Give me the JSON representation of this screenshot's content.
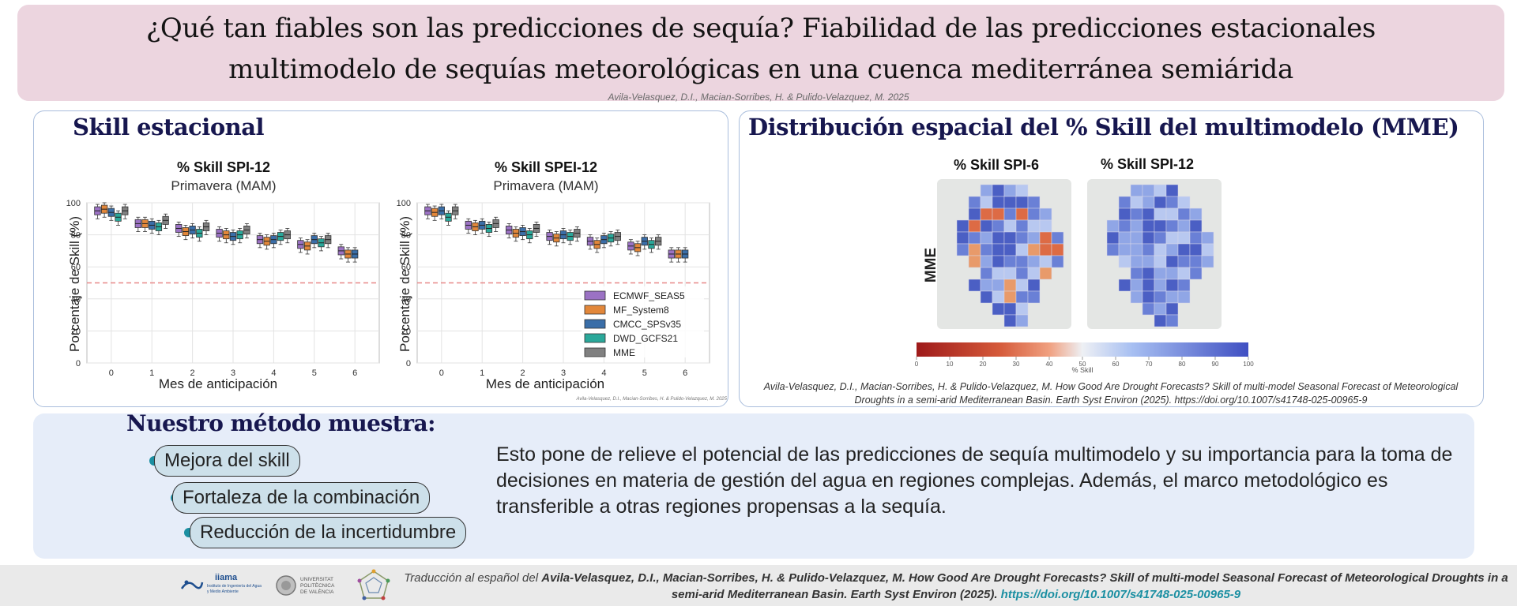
{
  "title": {
    "line1": "¿Qué tan fiables son las predicciones de sequía? Fiabilidad  de las predicciones estacionales",
    "line2": "multimodelo de sequías meteorológicas en una cuenca mediterránea semiárida",
    "authors": "Avila-Velasquez, D.I., Macian-Sorribes, H. & Pulido-Velazquez, M. 2025"
  },
  "left_panel": {
    "title": "Skill estacional",
    "credit": "Avila-Velasquez, D.I., Macian-Sorribes, H. & Pulido-Velazquez, M. 2025"
  },
  "right_panel": {
    "title": "Distribución espacial  del % Skill del multimodelo (MME)",
    "map1_title": "% Skill SPI-6",
    "map2_title": "% Skill SPI-12",
    "row_label": "MME",
    "colorbar_label": "% Skill",
    "colorbar_ticks": [
      "0",
      "10",
      "20",
      "30",
      "40",
      "50",
      "60",
      "70",
      "80",
      "90",
      "100"
    ],
    "citation": "Avila-Velasquez, D.I., Macian-Sorribes, H. & Pulido-Velazquez, M. How Good Are Drought Forecasts? Skill of multi-model Seasonal Forecast of Meteorological Droughts in a semi-arid Mediterranean Basin. Earth Syst Environ (2025). https://doi.org/10.1007/s41748-025-00965-9"
  },
  "chart_data": [
    {
      "type": "box",
      "title": "% Skill SPI-12",
      "subtitle": "Primavera (MAM)",
      "xlabel": "Mes de anticipación",
      "ylabel": "Porcentaje de Skill (%)",
      "ylim": [
        0,
        100
      ],
      "yticks": [
        "0",
        "20",
        "40",
        "60",
        "80",
        "100"
      ],
      "categories": [
        "0",
        "1",
        "2",
        "3",
        "4",
        "5",
        "6"
      ],
      "reference_line": 50,
      "series": [
        {
          "name": "ECMWF_SEAS5",
          "color": "#9b72c4",
          "medians": [
            95,
            87,
            84,
            81,
            77,
            74,
            70
          ]
        },
        {
          "name": "MF_System8",
          "color": "#e2873a",
          "medians": [
            96,
            87,
            82,
            80,
            76,
            73,
            68
          ]
        },
        {
          "name": "CMCC_SPSv35",
          "color": "#3a6ea8",
          "medians": [
            94,
            86,
            83,
            79,
            77,
            77,
            68
          ]
        },
        {
          "name": "DWD_GCFS21",
          "color": "#2aa89a",
          "medians": [
            91,
            85,
            81,
            80,
            79,
            75,
            null
          ]
        },
        {
          "name": "MME",
          "color": "#808080",
          "medians": [
            95,
            89,
            85,
            83,
            80,
            77,
            null
          ]
        }
      ]
    },
    {
      "type": "box",
      "title": "% Skill SPEI-12",
      "subtitle": "Primavera (MAM)",
      "xlabel": "Mes de anticipación",
      "ylabel": "Porcentaje de Skill (%)",
      "ylim": [
        0,
        100
      ],
      "yticks": [
        "0",
        "20",
        "40",
        "60",
        "80",
        "100"
      ],
      "categories": [
        "0",
        "1",
        "2",
        "3",
        "4",
        "5",
        "6"
      ],
      "reference_line": 50,
      "legend_position": "lower-right",
      "series": [
        {
          "name": "ECMWF_SEAS5",
          "color": "#9b72c4",
          "medians": [
            95,
            86,
            83,
            79,
            76,
            73,
            68
          ]
        },
        {
          "name": "MF_System8",
          "color": "#e2873a",
          "medians": [
            94,
            85,
            81,
            78,
            74,
            72,
            68
          ]
        },
        {
          "name": "CMCC_SPSv35",
          "color": "#3a6ea8",
          "medians": [
            95,
            86,
            82,
            80,
            77,
            76,
            68
          ]
        },
        {
          "name": "DWD_GCFS21",
          "color": "#2aa89a",
          "medians": [
            91,
            84,
            80,
            79,
            78,
            74,
            null
          ]
        },
        {
          "name": "MME",
          "color": "#808080",
          "medians": [
            95,
            87,
            84,
            81,
            79,
            76,
            null
          ]
        }
      ]
    }
  ],
  "method": {
    "title": "Nuestro método muestra:",
    "items": [
      "Mejora del skill",
      "Fortaleza de la combinación",
      "Reducción de la incertidumbre"
    ],
    "text": "Esto pone de relieve el potencial de las predicciones de sequía multimodelo y su importancia para la toma de decisiones en materia de gestión del agua en regiones complejas. Además, el marco metodológico es transferible a otras regiones propensas a la sequía."
  },
  "footer": {
    "prefix": "Traducción al español del ",
    "citation": "Avila-Velasquez, D.I., Macian-Sorribes, H. & Pulido-Velazquez, M. How Good Are Drought Forecasts? Skill of multi-model Seasonal Forecast of Meteorological Droughts in a semi-arid Mediterranean Basin. Earth Syst Environ (2025).",
    "doi": "https://doi.org/10.1007/s41748-025-00965-9",
    "logo1": "iiama",
    "logo1_sub": "Instituto de Ingeniería del Agua y Medio Ambiente",
    "logo2": "UNIVERSITAT POLITÈCNICA DE VALÈNCIA"
  }
}
